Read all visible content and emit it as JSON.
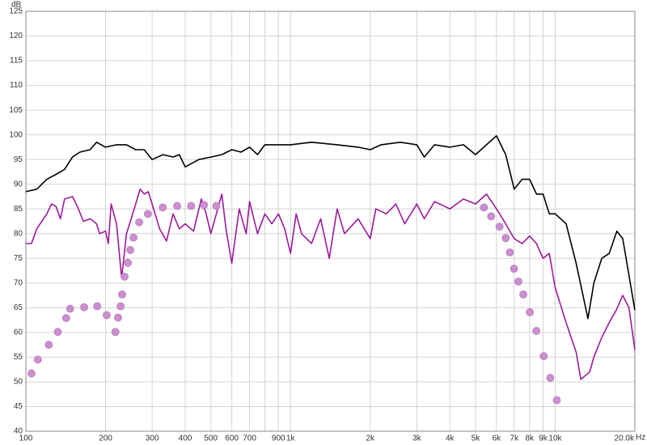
{
  "chart_data": {
    "type": "line",
    "y_unit": "dB",
    "x_unit": "Hz",
    "xscale": "log",
    "xlim": [
      100,
      20000
    ],
    "ylim": [
      40,
      125
    ],
    "grid": true,
    "xticks": [
      100,
      200,
      300,
      400,
      500,
      600,
      700,
      900,
      {
        "value": 1000,
        "label": "1k"
      },
      {
        "value": 2000,
        "label": "2k"
      },
      {
        "value": 3000,
        "label": "3k"
      },
      {
        "value": 4000,
        "label": "4k"
      },
      {
        "value": 5000,
        "label": "5k"
      },
      {
        "value": 6000,
        "label": "6k"
      },
      {
        "value": 7000,
        "label": "7k"
      },
      {
        "value": 8000,
        "label": "8k"
      },
      {
        "value": 9000,
        "label": "9k"
      },
      {
        "value": 10000,
        "label": "10k"
      },
      {
        "value": 20000,
        "label": "20.0k"
      }
    ],
    "xminor_ticks": [
      800
    ],
    "yticks": [
      40,
      45,
      50,
      55,
      60,
      65,
      70,
      75,
      80,
      85,
      90,
      95,
      100,
      105,
      110,
      115,
      120,
      125
    ],
    "series": [
      {
        "type": "line",
        "color": "#000000",
        "x": [
          100,
          110,
          120,
          130,
          140,
          150,
          160,
          175,
          185,
          200,
          220,
          240,
          260,
          280,
          300,
          330,
          360,
          380,
          400,
          450,
          500,
          550,
          600,
          650,
          700,
          750,
          800,
          900,
          1000,
          1200,
          1500,
          1800,
          2000,
          2200,
          2600,
          3000,
          3200,
          3500,
          4000,
          4500,
          5000,
          5500,
          6000,
          6500,
          7000,
          7500,
          8000,
          8500,
          9000,
          9500,
          10000,
          11000,
          12000,
          13300,
          14000,
          15000,
          16000,
          17100,
          18000,
          20000
        ],
        "values": [
          88.5,
          89,
          91,
          92,
          93,
          95.5,
          96.5,
          97,
          98.5,
          97.5,
          98,
          98,
          97,
          97,
          95,
          96,
          95.5,
          96,
          93.5,
          95,
          95.5,
          96,
          97,
          96.5,
          97.5,
          96,
          98,
          98,
          98,
          98.5,
          98,
          97.5,
          97,
          98,
          98.5,
          98,
          95.5,
          98,
          97.5,
          98,
          96,
          98,
          99.8,
          96,
          89,
          91,
          91,
          88,
          88,
          84,
          84,
          82,
          74,
          62.8,
          70,
          75,
          76,
          80.5,
          79,
          64.5
        ]
      },
      {
        "type": "line",
        "color": "#9c1a9c",
        "x": [
          100,
          105,
          110,
          120,
          125,
          130,
          135,
          140,
          150,
          155,
          165,
          175,
          185,
          190,
          200,
          205,
          210,
          220,
          230,
          240,
          250,
          260,
          270,
          280,
          290,
          300,
          320,
          340,
          360,
          380,
          400,
          430,
          460,
          480,
          500,
          550,
          570,
          600,
          640,
          680,
          700,
          750,
          800,
          850,
          900,
          950,
          1000,
          1050,
          1100,
          1200,
          1300,
          1400,
          1500,
          1600,
          1800,
          2000,
          2100,
          2300,
          2500,
          2700,
          3000,
          3200,
          3500,
          4000,
          4500,
          5000,
          5500,
          6000,
          6500,
          7000,
          7500,
          8000,
          8500,
          9000,
          9500,
          10000,
          11000,
          12000,
          12500,
          13500,
          14000,
          15000,
          16000,
          17000,
          18000,
          19000,
          20000
        ],
        "values": [
          78,
          78,
          81,
          84,
          86,
          85.5,
          83,
          87,
          87.5,
          86,
          82.5,
          83,
          82,
          80,
          80.5,
          78,
          86,
          82,
          71,
          80,
          83,
          86,
          89,
          88,
          88.5,
          86,
          81,
          78.5,
          84,
          81,
          82,
          80.5,
          87,
          84,
          80,
          88,
          81,
          74,
          85,
          80,
          86.5,
          80,
          84,
          82,
          84,
          81,
          76,
          84,
          80,
          78,
          83,
          75,
          85,
          80,
          83,
          79,
          85,
          84,
          86,
          82,
          86,
          83,
          86.5,
          85,
          87,
          86,
          88,
          85,
          82,
          79,
          78,
          79.5,
          78,
          75,
          76,
          69,
          62,
          56,
          50.5,
          52,
          55,
          59,
          62,
          64.5,
          67.5,
          65,
          56.5
        ]
      },
      {
        "type": "scatter",
        "color": "#cc8fd0",
        "x": [
          105,
          111,
          122,
          132,
          142,
          147,
          166,
          186,
          202,
          218,
          223,
          228,
          231,
          236,
          243,
          248,
          255,
          268,
          289,
          329,
          373,
          421,
          471,
          524,
          5380,
          5730,
          6160,
          6500,
          6740,
          6990,
          7260,
          7580,
          8020,
          8490,
          9050,
          9580,
          10140
        ],
        "values": [
          51.7,
          54.5,
          57.5,
          60.1,
          62.9,
          64.8,
          65.1,
          65.3,
          63.5,
          60.1,
          63,
          65.3,
          67.7,
          71.3,
          74.1,
          76.7,
          79.2,
          82.3,
          84,
          85.3,
          85.6,
          85.6,
          85.8,
          85.6,
          85.3,
          83.5,
          81.4,
          79.1,
          76.2,
          72.9,
          70.3,
          67.7,
          64.1,
          60.3,
          55.2,
          50.8,
          46.3
        ]
      }
    ]
  }
}
